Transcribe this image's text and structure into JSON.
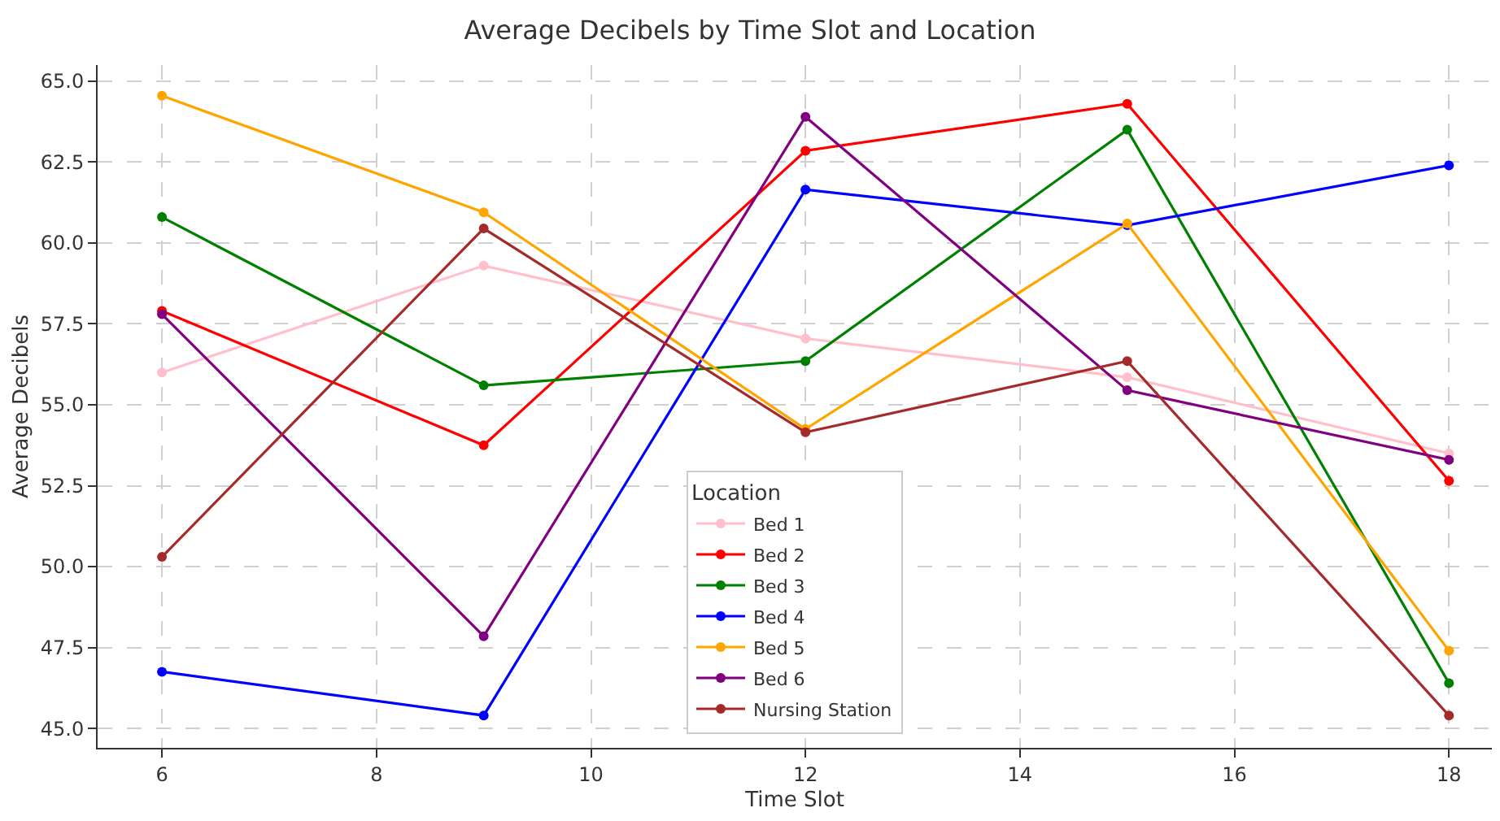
{
  "chart_data": {
    "type": "line",
    "title": "Average Decibels by Time Slot and Location",
    "xlabel": "Time Slot",
    "ylabel": "Average Decibels",
    "legend_title": "Location",
    "x": [
      6,
      9,
      12,
      15,
      18
    ],
    "series": [
      {
        "name": "Bed 1",
        "color": "#ffc0cb",
        "values": [
          56.0,
          59.3,
          57.05,
          55.85,
          53.5
        ]
      },
      {
        "name": "Bed 2",
        "color": "#ff0000",
        "values": [
          57.9,
          53.75,
          62.85,
          64.3,
          52.65
        ]
      },
      {
        "name": "Bed 3",
        "color": "#008000",
        "values": [
          60.8,
          55.6,
          56.35,
          63.5,
          46.4
        ]
      },
      {
        "name": "Bed 4",
        "color": "#0000ff",
        "values": [
          46.75,
          45.4,
          61.65,
          60.55,
          62.4
        ]
      },
      {
        "name": "Bed 5",
        "color": "#ffa500",
        "values": [
          64.55,
          60.95,
          54.25,
          60.6,
          47.4
        ]
      },
      {
        "name": "Bed 6",
        "color": "#800080",
        "values": [
          57.8,
          47.85,
          63.9,
          55.45,
          53.3
        ]
      },
      {
        "name": "Nursing Station",
        "color": "#a52a2a",
        "values": [
          50.3,
          60.45,
          54.15,
          56.35,
          45.4
        ]
      }
    ],
    "xlim": [
      5.4,
      18.4
    ],
    "ylim": [
      44.4,
      65.5
    ],
    "xticks": [
      6,
      8,
      10,
      12,
      14,
      16,
      18
    ],
    "yticks": [
      {
        "value": 45,
        "label": "45.0"
      },
      {
        "value": 47.5,
        "label": "47.5"
      },
      {
        "value": 50,
        "label": "50.0"
      },
      {
        "value": 52.5,
        "label": "52.5"
      },
      {
        "value": 55,
        "label": "55.0"
      },
      {
        "value": 57.5,
        "label": "57.5"
      },
      {
        "value": 60,
        "label": "60.0"
      },
      {
        "value": 62.5,
        "label": "62.5"
      },
      {
        "value": 65,
        "label": "65.0"
      }
    ],
    "grid": true,
    "legend": "bottom",
    "marker": "circle",
    "line_style": "solid"
  }
}
